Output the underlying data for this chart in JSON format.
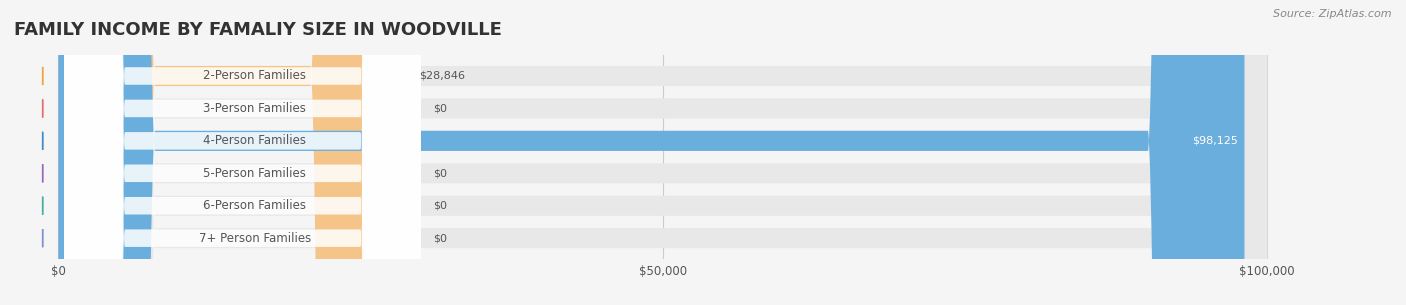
{
  "title": "FAMILY INCOME BY FAMALIY SIZE IN WOODVILLE",
  "source": "Source: ZipAtlas.com",
  "categories": [
    "2-Person Families",
    "3-Person Families",
    "4-Person Families",
    "5-Person Families",
    "6-Person Families",
    "7+ Person Families"
  ],
  "values": [
    28846,
    0,
    98125,
    0,
    0,
    0
  ],
  "bar_colors": [
    "#f5c489",
    "#f0a0a0",
    "#6aaedd",
    "#c8a8d8",
    "#7ecfc8",
    "#a8b8e8"
  ],
  "circle_colors": [
    "#f5a040",
    "#e07070",
    "#4488cc",
    "#9968b8",
    "#40b0a0",
    "#8090c8"
  ],
  "value_labels": [
    "$28,846",
    "$0",
    "$98,125",
    "$0",
    "$0",
    "$0"
  ],
  "xmax": 100000,
  "xticks": [
    0,
    50000,
    100000
  ],
  "xtick_labels": [
    "$0",
    "$50,000",
    "$100,000"
  ],
  "background_color": "#f5f5f5",
  "bar_bg_color": "#e8e8e8",
  "title_color": "#333333",
  "label_color": "#555555",
  "source_color": "#888888",
  "grid_color": "#cccccc"
}
